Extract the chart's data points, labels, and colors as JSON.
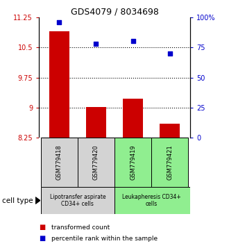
{
  "title": "GDS4079 / 8034698",
  "samples": [
    "GSM779418",
    "GSM779420",
    "GSM779419",
    "GSM779421"
  ],
  "bar_values": [
    10.9,
    9.02,
    9.22,
    8.6
  ],
  "scatter_values": [
    96,
    78,
    80,
    70
  ],
  "bar_base": 8.25,
  "left_ylim": [
    8.25,
    11.25
  ],
  "right_ylim": [
    0,
    100
  ],
  "left_yticks": [
    8.25,
    9.0,
    9.75,
    10.5,
    11.25
  ],
  "left_yticklabels": [
    "8.25",
    "9",
    "9.75",
    "10.5",
    "11.25"
  ],
  "right_yticks": [
    0,
    25,
    50,
    75,
    100
  ],
  "right_yticklabels": [
    "0",
    "25",
    "50",
    "75",
    "100%"
  ],
  "hlines": [
    9.0,
    9.75,
    10.5
  ],
  "bar_color": "#cc0000",
  "scatter_color": "#0000cc",
  "group1_label": "Lipotransfer aspirate\nCD34+ cells",
  "group2_label": "Leukapheresis CD34+\ncells",
  "group1_color": "#d3d3d3",
  "group2_color": "#90ee90",
  "cell_type_label": "cell type",
  "legend_bar_label": "transformed count",
  "legend_scatter_label": "percentile rank within the sample",
  "bar_width": 0.55
}
